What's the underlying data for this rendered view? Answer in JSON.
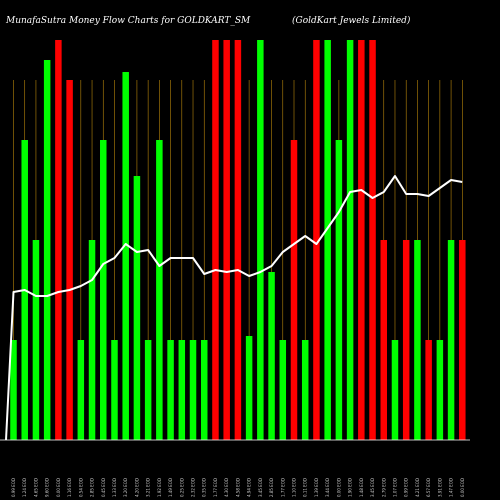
{
  "page": {
    "title_left": "MunafaSutra  Money Flow  Charts for GOLDKART_SM",
    "title_right": "(GoldKart Jewels Limited)"
  },
  "colors": {
    "background": "#000000",
    "up_bar": "#00ff00",
    "down_bar": "#ff0000",
    "gridline": "#b8860b",
    "line": "#ffffff",
    "baseline": "#ffffff"
  },
  "chart_data": {
    "type": "bar",
    "title": "MunafaSutra  Money Flow  Charts for GOLDKART_SM",
    "subtitle": "(GoldKart Jewels Limited)",
    "xlabel": "",
    "ylabel": "",
    "grid": true,
    "legend": "none",
    "ylim": [
      0,
      100
    ],
    "categories": [
      "0.99 EOD",
      "1.24 EOD",
      "4.65 EOD",
      "9.60 EOD",
      "0.00 EOD",
      "1.16 EOD",
      "0.54 EOD",
      "2.85 EOD",
      "0.45 EOD",
      "1.33 EOD",
      "3.20 EOD",
      "4.20 EOD",
      "3.21 EOD",
      "1.92 EOD",
      "1.49 EOD",
      "0.25 EOD",
      "2.32 EOD",
      "0.35 EOD",
      "1.77 EOD",
      "4.30 EOD",
      "4.58 EOD",
      "4.94 EOD",
      "3.45 EOD",
      "2.85 EOD",
      "1.77 EOD",
      "1.10 EOD",
      "0.11 EOD",
      "1.39 EOD",
      "3.44 EOD",
      "0.00 EOD",
      "1.90 EOD",
      "1.48 EOD",
      "3.45 EOD",
      "2.79 EOD",
      "1.07 EOD",
      "0.99 EOD",
      "4.21 EOD",
      "6.57 EOD",
      "3.91 EOD",
      "1.47 EOD",
      "0.00 EOD"
    ],
    "series": [
      {
        "kind": "bars",
        "values": [
          25,
          75,
          50,
          95,
          100,
          90,
          25,
          50,
          75,
          25,
          92,
          66,
          25,
          75,
          25,
          25,
          25,
          25,
          100,
          100,
          100,
          26,
          100,
          42,
          25,
          75,
          25,
          100,
          100,
          75,
          100,
          100,
          100,
          50,
          25,
          50,
          50,
          25,
          25,
          50,
          50
        ],
        "flow": [
          "up",
          "up",
          "up",
          "up",
          "down",
          "down",
          "up",
          "up",
          "up",
          "up",
          "up",
          "up",
          "up",
          "up",
          "up",
          "up",
          "up",
          "up",
          "down",
          "down",
          "down",
          "up",
          "up",
          "up",
          "up",
          "down",
          "up",
          "down",
          "up",
          "up",
          "up",
          "down",
          "down",
          "down",
          "up",
          "down",
          "up",
          "down",
          "up",
          "up",
          "down"
        ]
      },
      {
        "kind": "line",
        "values": [
          37,
          37.5,
          36,
          36,
          37,
          37.5,
          38.5,
          40,
          44,
          45.5,
          49,
          47,
          47.5,
          43.5,
          45.5,
          45.5,
          45.5,
          41.5,
          42.5,
          42,
          42.5,
          41,
          42,
          43.5,
          47,
          49,
          51,
          49,
          53,
          57,
          62,
          62.5,
          60.5,
          62,
          66,
          61.5,
          61.5,
          61,
          63,
          65,
          64.5
        ]
      }
    ]
  }
}
